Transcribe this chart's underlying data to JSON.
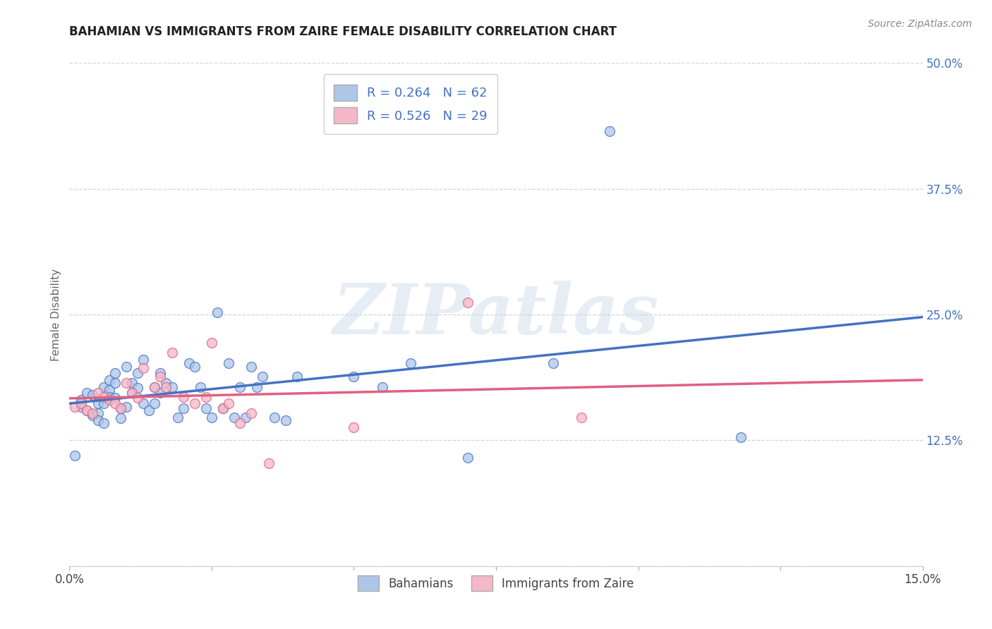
{
  "title": "BAHAMIAN VS IMMIGRANTS FROM ZAIRE FEMALE DISABILITY CORRELATION CHART",
  "source": "Source: ZipAtlas.com",
  "ylabel": "Female Disability",
  "xlim": [
    0.0,
    0.15
  ],
  "ylim": [
    0.0,
    0.5
  ],
  "xticks": [
    0.0,
    0.025,
    0.05,
    0.075,
    0.1,
    0.125,
    0.15
  ],
  "xticklabels": [
    "0.0%",
    "",
    "",
    "",
    "",
    "",
    "15.0%"
  ],
  "yticks": [
    0.0,
    0.125,
    0.25,
    0.375,
    0.5
  ],
  "yticklabels": [
    "",
    "12.5%",
    "25.0%",
    "37.5%",
    "50.0%"
  ],
  "blue_R": 0.264,
  "blue_N": 62,
  "pink_R": 0.526,
  "pink_N": 29,
  "legend1": "Bahamians",
  "legend2": "Immigrants from Zaire",
  "blue_color": "#aec6e8",
  "pink_color": "#f5b8c8",
  "blue_line_color": "#4472c4",
  "pink_line_color": "#e06080",
  "blue_x": [
    0.001,
    0.002,
    0.002,
    0.003,
    0.003,
    0.004,
    0.004,
    0.005,
    0.005,
    0.005,
    0.006,
    0.006,
    0.006,
    0.007,
    0.007,
    0.007,
    0.008,
    0.008,
    0.008,
    0.009,
    0.009,
    0.01,
    0.01,
    0.011,
    0.011,
    0.012,
    0.012,
    0.013,
    0.013,
    0.014,
    0.015,
    0.015,
    0.016,
    0.016,
    0.017,
    0.018,
    0.019,
    0.02,
    0.021,
    0.022,
    0.023,
    0.024,
    0.025,
    0.026,
    0.027,
    0.028,
    0.029,
    0.03,
    0.031,
    0.032,
    0.033,
    0.034,
    0.036,
    0.038,
    0.04,
    0.05,
    0.055,
    0.06,
    0.07,
    0.085,
    0.095,
    0.118
  ],
  "blue_y": [
    0.11,
    0.165,
    0.158,
    0.155,
    0.172,
    0.15,
    0.17,
    0.162,
    0.152,
    0.145,
    0.178,
    0.162,
    0.142,
    0.185,
    0.175,
    0.168,
    0.192,
    0.182,
    0.167,
    0.157,
    0.147,
    0.158,
    0.198,
    0.182,
    0.172,
    0.192,
    0.177,
    0.205,
    0.162,
    0.155,
    0.178,
    0.162,
    0.192,
    0.172,
    0.182,
    0.178,
    0.148,
    0.157,
    0.202,
    0.198,
    0.178,
    0.157,
    0.148,
    0.252,
    0.157,
    0.202,
    0.148,
    0.178,
    0.148,
    0.198,
    0.178,
    0.188,
    0.148,
    0.145,
    0.188,
    0.188,
    0.178,
    0.202,
    0.108,
    0.202,
    0.432,
    0.128
  ],
  "pink_x": [
    0.001,
    0.002,
    0.003,
    0.004,
    0.005,
    0.006,
    0.007,
    0.008,
    0.009,
    0.01,
    0.011,
    0.012,
    0.013,
    0.015,
    0.016,
    0.017,
    0.018,
    0.02,
    0.022,
    0.024,
    0.025,
    0.027,
    0.028,
    0.03,
    0.032,
    0.035,
    0.05,
    0.07,
    0.09
  ],
  "pink_y": [
    0.158,
    0.162,
    0.155,
    0.152,
    0.172,
    0.168,
    0.165,
    0.162,
    0.157,
    0.182,
    0.172,
    0.167,
    0.197,
    0.178,
    0.188,
    0.178,
    0.212,
    0.168,
    0.162,
    0.168,
    0.222,
    0.157,
    0.162,
    0.142,
    0.152,
    0.102,
    0.138,
    0.262,
    0.148
  ],
  "watermark": "ZIPatlas",
  "background_color": "#ffffff",
  "grid_color": "#d0d0d0"
}
